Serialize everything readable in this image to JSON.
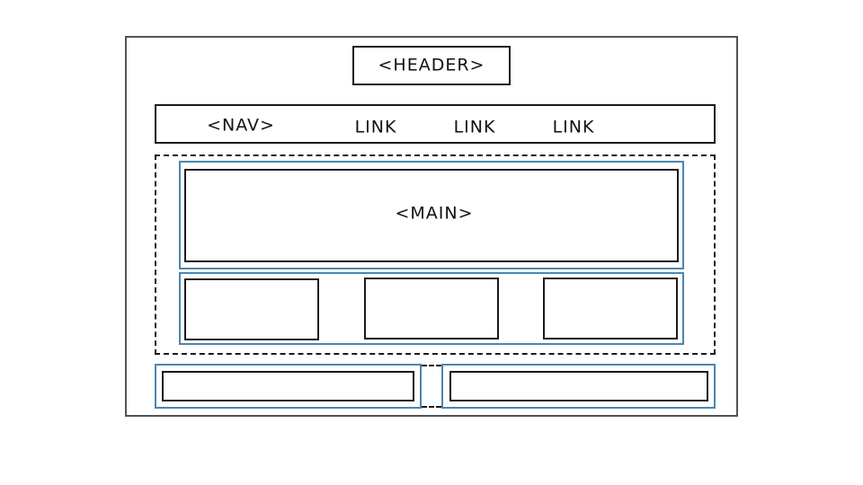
{
  "header": {
    "label": "<HEADER>"
  },
  "nav": {
    "label": "<NAV>",
    "links": [
      "LINK",
      "LINK",
      "LINK"
    ]
  },
  "main": {
    "label": "<MAIN>"
  },
  "colors": {
    "frame": "#4b5559",
    "outline": "#1a1a1a",
    "accent_blue": "#4a86b0"
  }
}
